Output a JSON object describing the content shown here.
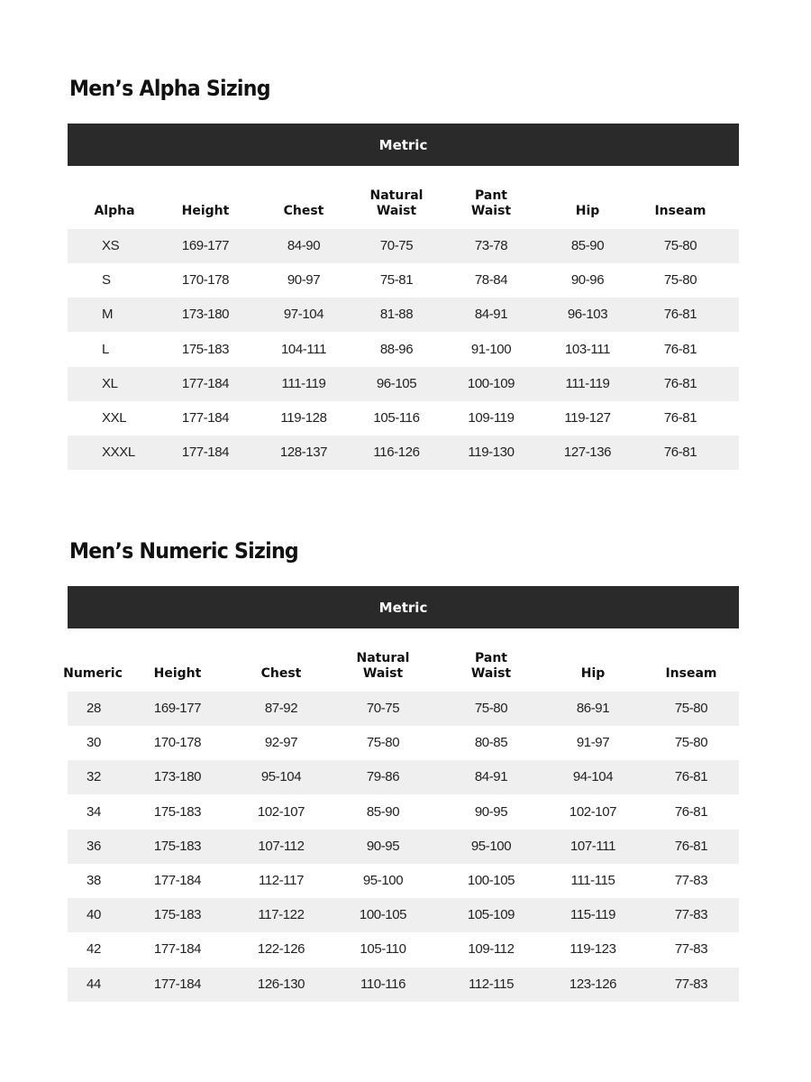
{
  "sections": [
    {
      "title": "Men’s Alpha Sizing",
      "bar_label": "Metric",
      "headers": [
        "Alpha",
        "Height",
        "Chest",
        "Natural\nWaist",
        "Pant\nWaist",
        "Hip",
        "Inseam"
      ],
      "rows": [
        [
          "XS",
          "169-177",
          "84-90",
          "70-75",
          "73-78",
          "85-90",
          "75-80"
        ],
        [
          "S",
          "170-178",
          "90-97",
          "75-81",
          "78-84",
          "90-96",
          "75-80"
        ],
        [
          "M",
          "173-180",
          "97-104",
          "81-88",
          "84-91",
          "96-103",
          "76-81"
        ],
        [
          "L",
          "175-183",
          "104-111",
          "88-96",
          "91-100",
          "103-111",
          "76-81"
        ],
        [
          "XL",
          "177-184",
          "111-119",
          "96-105",
          "100-109",
          "111-119",
          "76-81"
        ],
        [
          "XXL",
          "177-184",
          "119-128",
          "105-116",
          "109-119",
          "119-127",
          "76-81"
        ],
        [
          "XXXL",
          "177-184",
          "128-137",
          "116-126",
          "119-130",
          "127-136",
          "76-81"
        ]
      ]
    },
    {
      "title": "Men’s Numeric Sizing",
      "bar_label": "Metric",
      "headers": [
        "Numeric",
        "Height",
        "Chest",
        "Natural\nWaist",
        "Pant\nWaist",
        "Hip",
        "Inseam"
      ],
      "rows": [
        [
          "28",
          "169-177",
          "87-92",
          "70-75",
          "75-80",
          "86-91",
          "75-80"
        ],
        [
          "30",
          "170-178",
          "92-97",
          "75-80",
          "80-85",
          "91-97",
          "75-80"
        ],
        [
          "32",
          "173-180",
          "95-104",
          "79-86",
          "84-91",
          "94-104",
          "76-81"
        ],
        [
          "34",
          "175-183",
          "102-107",
          "85-90",
          "90-95",
          "102-107",
          "76-81"
        ],
        [
          "36",
          "175-183",
          "107-112",
          "90-95",
          "95-100",
          "107-111",
          "76-81"
        ],
        [
          "38",
          "177-184",
          "112-117",
          "95-100",
          "100-105",
          "111-115",
          "77-83"
        ],
        [
          "40",
          "175-183",
          "117-122",
          "100-105",
          "105-109",
          "115-119",
          "77-83"
        ],
        [
          "42",
          "177-184",
          "122-126",
          "105-110",
          "109-112",
          "119-123",
          "77-83"
        ],
        [
          "44",
          "177-184",
          "126-130",
          "110-116",
          "112-115",
          "123-126",
          "77-83"
        ]
      ]
    }
  ],
  "colors": {
    "header_bar": "#2a2a2a",
    "stripe": "#efefef"
  }
}
